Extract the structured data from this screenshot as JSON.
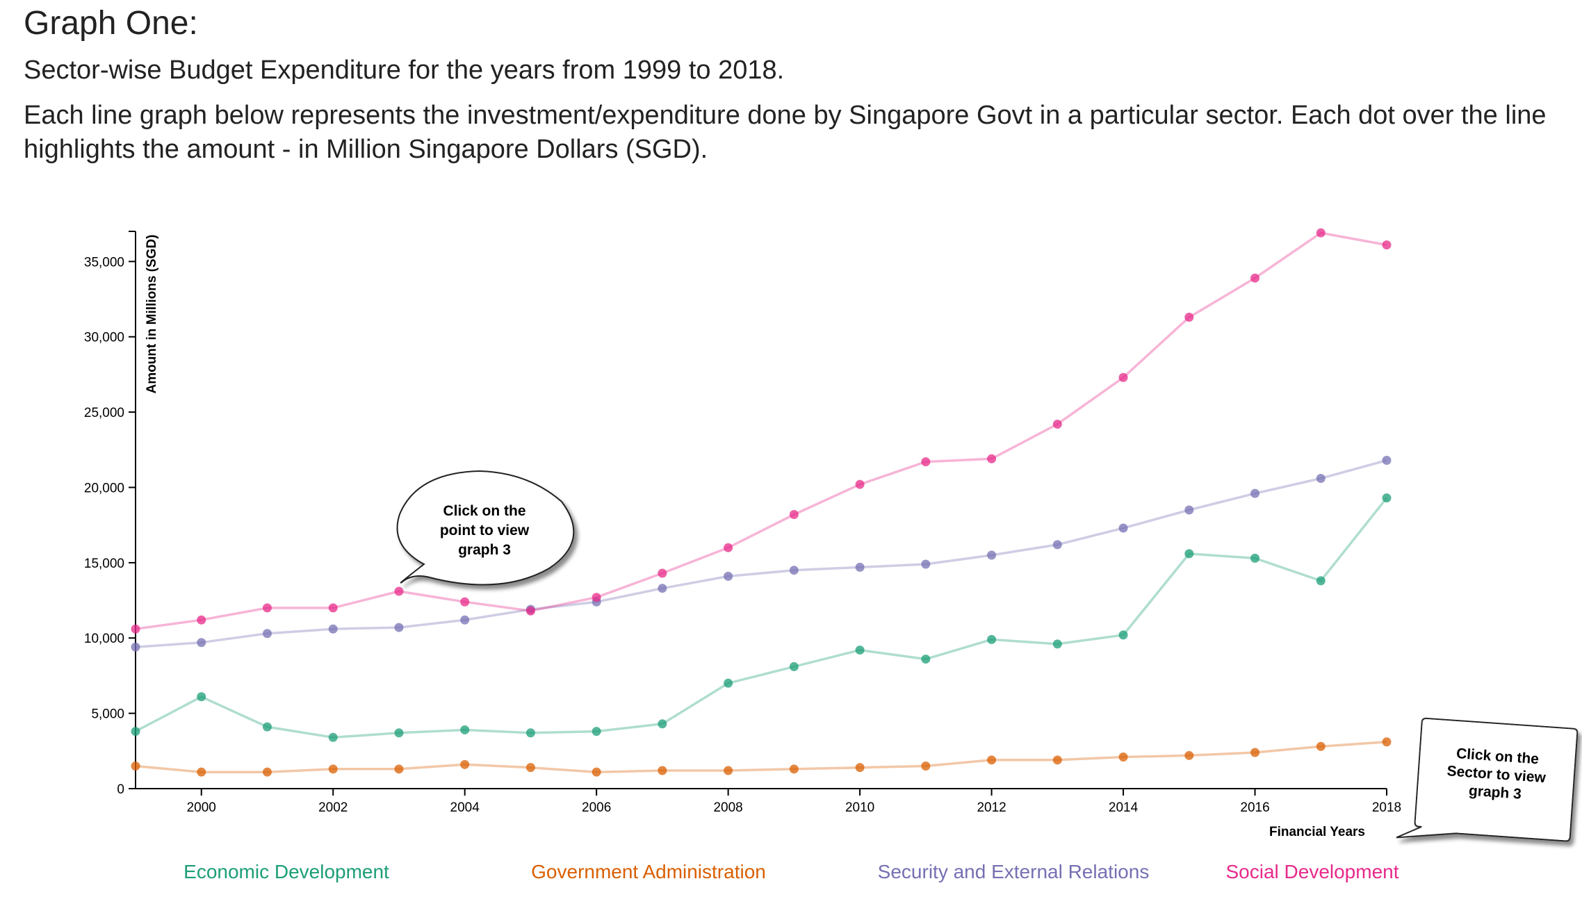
{
  "header": {
    "title": "Graph One:",
    "subtitle": "Sector-wise Budget Expenditure for the years from 1999 to 2018.",
    "description_line1": "Each line graph below represents the investment/expenditure done by Singapore Govt in a particular sector. Each dot over the line",
    "description_line2": "highlights the amount - in Million Singapore Dollars (SGD)."
  },
  "callouts": {
    "point": [
      "Click on the",
      "point to view",
      "graph 3"
    ],
    "sector": [
      "Click on the",
      "Sector to view",
      "graph 3"
    ]
  },
  "chart_data": {
    "type": "line",
    "xlabel": "Financial Years",
    "ylabel": "Amount in Millions (SGD)",
    "xlim": [
      1999,
      2018
    ],
    "ylim": [
      0,
      37000
    ],
    "x_ticks": [
      2000,
      2002,
      2004,
      2006,
      2008,
      2010,
      2012,
      2014,
      2016,
      2018
    ],
    "y_ticks": [
      0,
      5000,
      10000,
      15000,
      20000,
      25000,
      30000,
      35000
    ],
    "y_tick_labels": [
      "0",
      "5,000",
      "10,000",
      "15,000",
      "20,000",
      "25,000",
      "30,000",
      "35,000"
    ],
    "grid": false,
    "legend_position": "bottom",
    "x": [
      1999,
      2000,
      2001,
      2002,
      2003,
      2004,
      2005,
      2006,
      2007,
      2008,
      2009,
      2010,
      2011,
      2012,
      2013,
      2014,
      2015,
      2016,
      2017,
      2018
    ],
    "series": [
      {
        "name": "Economic Development",
        "color": "#1b9e77",
        "values": [
          3800,
          6100,
          4100,
          3400,
          3700,
          3900,
          3700,
          3800,
          4300,
          7000,
          8100,
          9200,
          8600,
          9900,
          9600,
          10200,
          15600,
          15300,
          13800,
          19300
        ]
      },
      {
        "name": "Government Administration",
        "color": "#d95f02",
        "values": [
          1500,
          1100,
          1100,
          1300,
          1300,
          1600,
          1400,
          1100,
          1200,
          1200,
          1300,
          1400,
          1500,
          1900,
          1900,
          2100,
          2200,
          2400,
          2800,
          3100
        ]
      },
      {
        "name": "Security and External Relations",
        "color": "#7570b3",
        "values": [
          9400,
          9700,
          10300,
          10600,
          10700,
          11200,
          11900,
          12400,
          13300,
          14100,
          14500,
          14700,
          14900,
          15500,
          16200,
          17300,
          18500,
          19600,
          20600,
          21800
        ]
      },
      {
        "name": "Social Development",
        "color": "#e7298a",
        "values": [
          10600,
          11200,
          12000,
          12000,
          13100,
          12400,
          11800,
          12700,
          14300,
          16000,
          18200,
          20200,
          21700,
          21900,
          24200,
          27300,
          31300,
          33900,
          36900,
          36100
        ]
      }
    ]
  }
}
